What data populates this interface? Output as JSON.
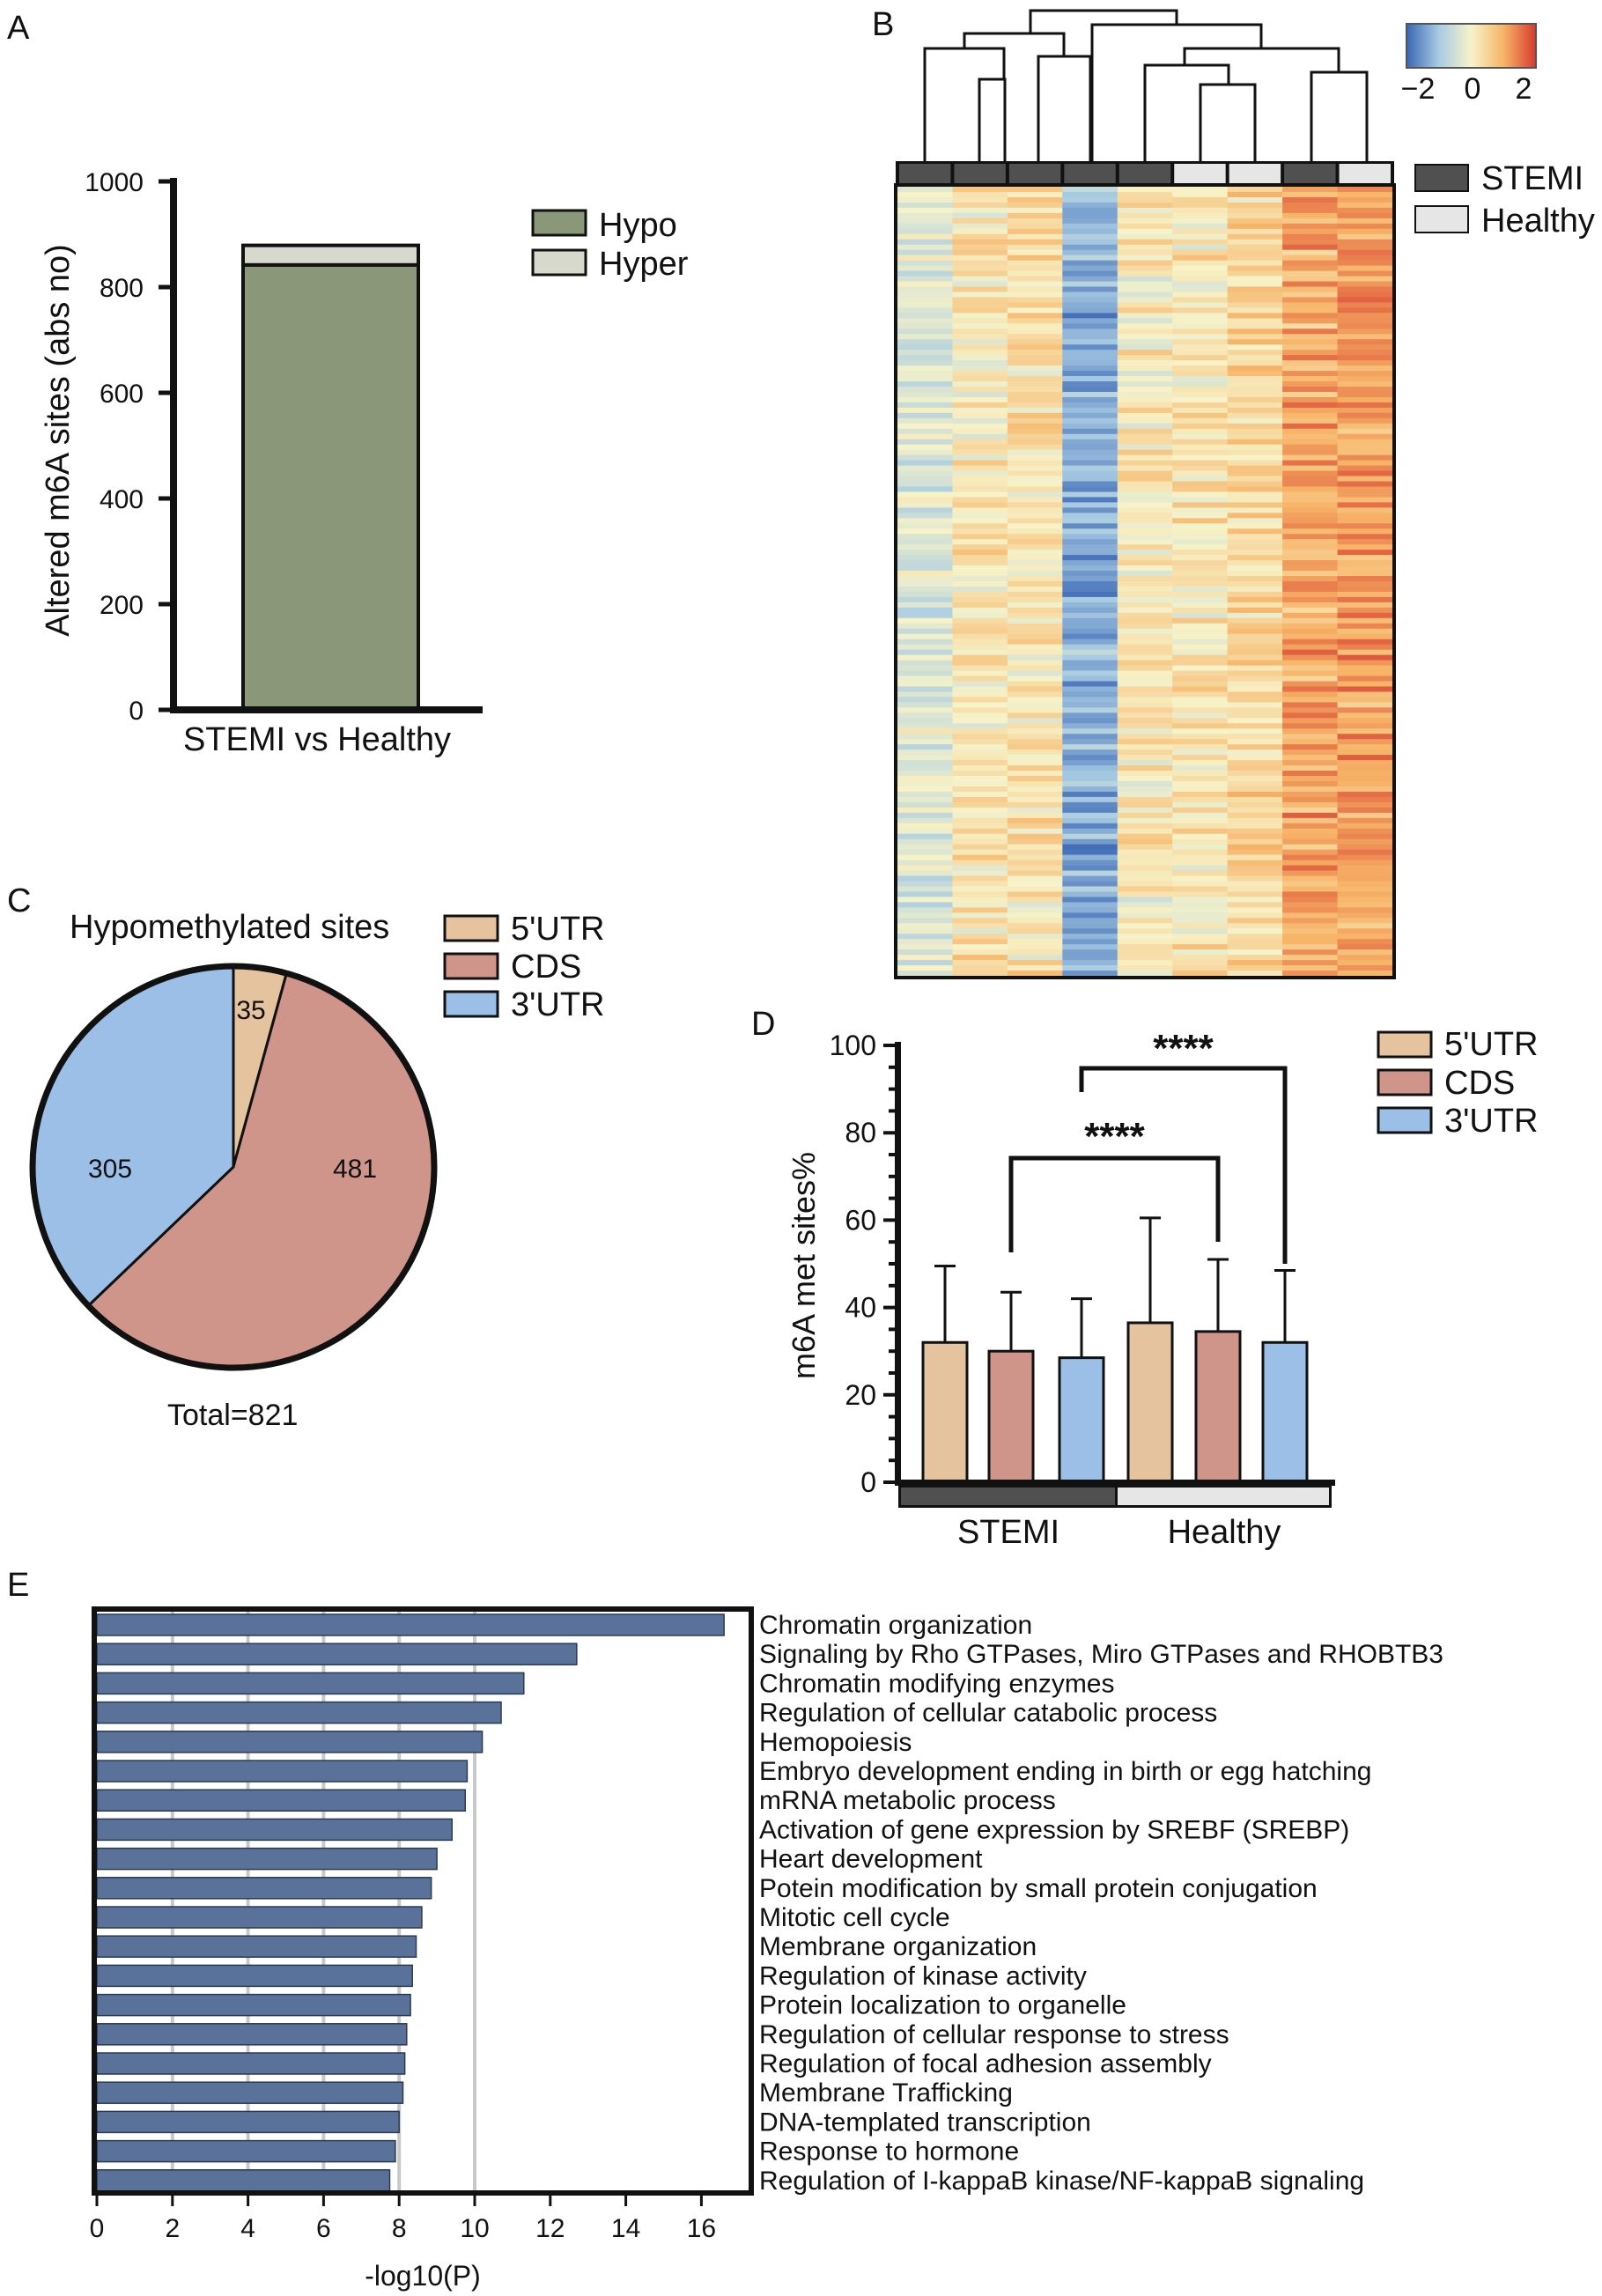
{
  "panels": {
    "a": "A",
    "b": "B",
    "c": "C",
    "d": "D",
    "e": "E"
  },
  "chart_data": [
    {
      "id": "A",
      "type": "bar",
      "stacked": true,
      "categories": [
        "STEMI vs Healthy"
      ],
      "series": [
        {
          "name": "Hypo",
          "values": [
            842
          ],
          "color": "#8a9778"
        },
        {
          "name": "Hyper",
          "values": [
            37
          ],
          "color": "#d6d9cc"
        }
      ],
      "ylabel": "Altered m6A sites (abs no)",
      "ylim": [
        0,
        1000
      ],
      "yticks": [
        "0",
        "200",
        "400",
        "600",
        "800",
        "1000"
      ]
    },
    {
      "id": "B",
      "type": "heatmap",
      "colorbar": {
        "ticks": [
          "−2",
          "0",
          "2"
        ],
        "range": [
          -2,
          2
        ]
      },
      "columns": [
        "STEMI",
        "STEMI",
        "STEMI",
        "STEMI",
        "STEMI",
        "Healthy",
        "Healthy",
        "STEMI",
        "Healthy"
      ],
      "column_means": [
        -0.35,
        0.2,
        0.3,
        -1.3,
        0.15,
        0.2,
        0.45,
        1.05,
        1.1
      ],
      "groups": [
        {
          "name": "STEMI",
          "color": "#505050"
        },
        {
          "name": "Healthy",
          "color": "#e6e6e6"
        }
      ]
    },
    {
      "id": "C",
      "type": "pie",
      "title": "Hypomethylated sites",
      "labels": [
        "5'UTR",
        "CDS",
        "3'UTR"
      ],
      "values": [
        35,
        481,
        305
      ],
      "value_labels": [
        "35",
        "481",
        "305"
      ],
      "colors": [
        "#e5c39e",
        "#cf958a",
        "#9bbfe6"
      ],
      "footer": "Total=821"
    },
    {
      "id": "D",
      "type": "bar",
      "ylabel": "m6A met sites%",
      "ylim": [
        0,
        100
      ],
      "yticks": [
        "0",
        "20",
        "40",
        "60",
        "80",
        "100"
      ],
      "groups": [
        "STEMI",
        "Healthy"
      ],
      "group_colors": [
        "#505050",
        "#e6e6e6"
      ],
      "series_names": [
        "5'UTR",
        "CDS",
        "3'UTR"
      ],
      "series_colors": [
        "#e5c39e",
        "#cf958a",
        "#9bbfe6"
      ],
      "values": [
        [
          32,
          30,
          28.5
        ],
        [
          36.5,
          34.5,
          32
        ]
      ],
      "errors": [
        [
          17.5,
          13.5,
          13.5
        ],
        [
          24,
          16.5,
          16.5
        ]
      ],
      "significance": [
        {
          "label": "****",
          "from": [
            0,
            1
          ],
          "to": [
            1,
            1
          ]
        },
        {
          "label": "****",
          "from": [
            0,
            2
          ],
          "to": [
            1,
            2
          ]
        }
      ]
    },
    {
      "id": "E",
      "type": "bar",
      "orientation": "horizontal",
      "xlabel": "-log10(P)",
      "xlim": [
        0,
        17
      ],
      "xticks": [
        "0",
        "2",
        "4",
        "6",
        "8",
        "10",
        "12",
        "14",
        "16"
      ],
      "color": "#5a7299",
      "categories": [
        "Chromatin organization",
        "Signaling by Rho GTPases, Miro GTPases and RHOBTB3",
        "Chromatin modifying enzymes",
        "Regulation of cellular catabolic process",
        "Hemopoiesis",
        "Embryo development ending in birth or egg hatching",
        "mRNA metabolic process",
        "Activation of gene expression by SREBF (SREBP)",
        "Heart development",
        "Potein modification by small protein conjugation",
        "Mitotic cell cycle",
        "Membrane organization",
        "Regulation of kinase activity",
        "Protein localization to organelle",
        "Regulation of cellular response to stress",
        "Regulation of focal adhesion assembly",
        "Membrane Trafficking",
        "DNA-templated transcription",
        "Response to hormone",
        "Regulation of I-kappaB kinase/NF-kappaB signaling"
      ],
      "values": [
        16.6,
        12.7,
        11.3,
        10.7,
        10.2,
        9.8,
        9.75,
        9.4,
        9.0,
        8.85,
        8.6,
        8.45,
        8.35,
        8.3,
        8.2,
        8.15,
        8.1,
        8.0,
        7.9,
        7.75
      ]
    }
  ]
}
